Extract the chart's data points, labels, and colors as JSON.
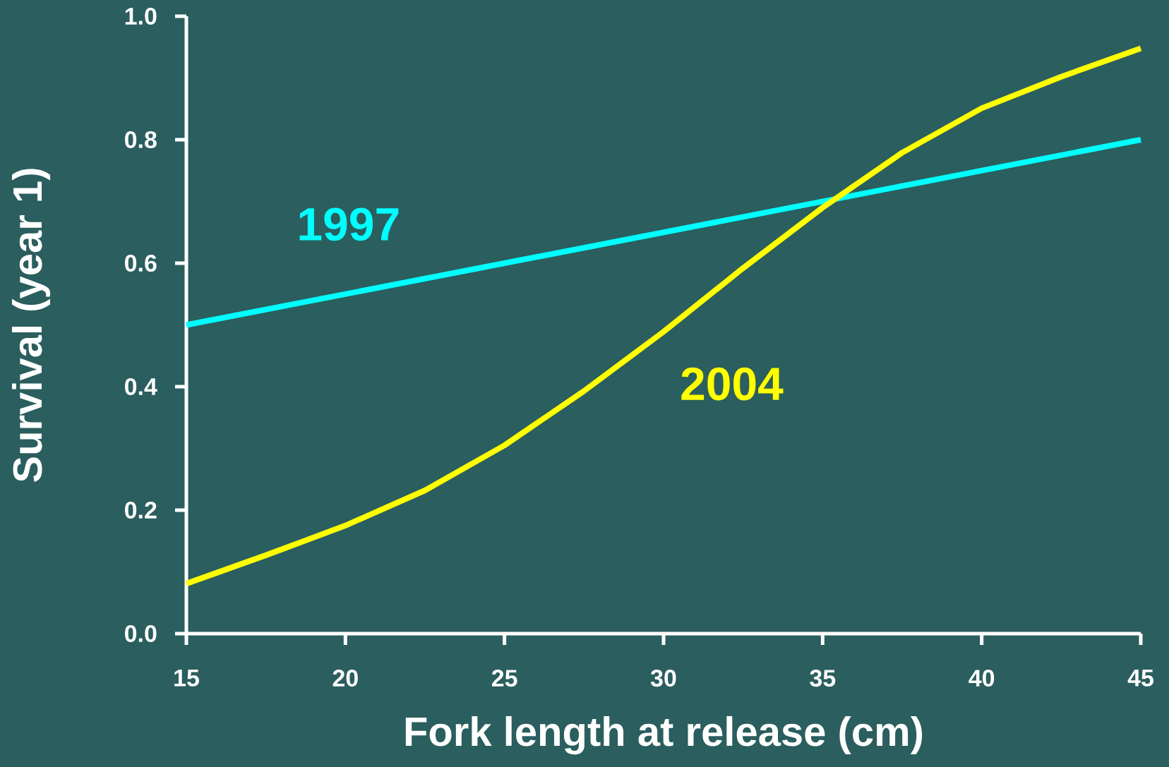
{
  "chart_data": {
    "type": "line",
    "xlabel": "Fork length at release (cm)",
    "ylabel": "Survival (year 1)",
    "xlim": [
      15,
      45
    ],
    "xticks": [
      15,
      20,
      25,
      30,
      35,
      40,
      45
    ],
    "ylim": [
      0,
      1
    ],
    "yticks": [
      {
        "value": 0,
        "label": "0.0"
      },
      {
        "value": 0.2,
        "label": "0.2"
      },
      {
        "value": 0.4,
        "label": "0.4"
      },
      {
        "value": 0.6,
        "label": "0.6"
      },
      {
        "value": 0.8,
        "label": "0.8"
      },
      {
        "value": 1,
        "label": "1.0"
      }
    ],
    "grid": false,
    "legend": false,
    "marker": "none",
    "line_style": "solid",
    "series": [
      {
        "name": "1997",
        "color": "#00ffff",
        "x": [
          15,
          45
        ],
        "values": [
          0.5,
          0.8
        ]
      },
      {
        "name": "2004",
        "color": "#ffff00",
        "x": [
          15,
          17.5,
          20,
          22.5,
          25,
          27.5,
          30,
          32.5,
          35,
          37.5,
          40,
          42.5,
          45
        ],
        "values": [
          0.081,
          0.127,
          0.175,
          0.232,
          0.305,
          0.393,
          0.489,
          0.592,
          0.69,
          0.779,
          0.851,
          0.902,
          0.948
        ]
      }
    ]
  }
}
